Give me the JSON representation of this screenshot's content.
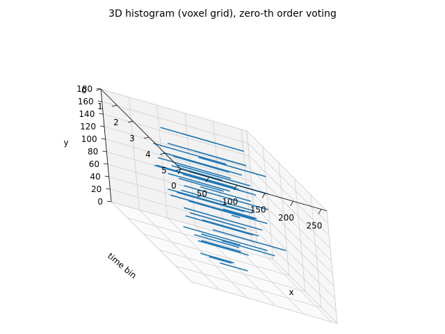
{
  "chart_data": {
    "type": "3d-voxel-histogram",
    "title": "3D histogram (voxel grid), zero-th order voting",
    "xlabel": "x",
    "ylabel": "y",
    "zlabel": "time bin",
    "x_ticks": [
      "0",
      "50",
      "100",
      "150",
      "200",
      "250"
    ],
    "y_ticks": [
      "0",
      "20",
      "40",
      "60",
      "80",
      "100",
      "120",
      "140",
      "160",
      "180"
    ],
    "time_ticks": [
      "0",
      "1",
      "2",
      "3",
      "4",
      "5"
    ],
    "xlim": [
      0,
      260
    ],
    "ylim": [
      0,
      180
    ],
    "time_lim": [
      0,
      5
    ],
    "grid": true,
    "series_color": "#1f77b4",
    "segments": [
      {
        "t": 0.3,
        "y": 40,
        "x0": 210,
        "x1": 225
      },
      {
        "t": 0.2,
        "y": 70,
        "x0": 160,
        "x1": 250
      },
      {
        "t": 0.5,
        "y": 50,
        "x0": 190,
        "x1": 250
      },
      {
        "t": 0.6,
        "y": 90,
        "x0": 120,
        "x1": 250
      },
      {
        "t": 0.9,
        "y": 30,
        "x0": 140,
        "x1": 240
      },
      {
        "t": 1.0,
        "y": 110,
        "x0": 100,
        "x1": 230
      },
      {
        "t": 1.2,
        "y": 60,
        "x0": 110,
        "x1": 250
      },
      {
        "t": 1.4,
        "y": 140,
        "x0": 130,
        "x1": 250
      },
      {
        "t": 1.5,
        "y": 80,
        "x0": 90,
        "x1": 220
      },
      {
        "t": 1.7,
        "y": 20,
        "x0": 150,
        "x1": 245
      },
      {
        "t": 1.8,
        "y": 120,
        "x0": 100,
        "x1": 240
      },
      {
        "t": 2.0,
        "y": 160,
        "x0": 60,
        "x1": 200
      },
      {
        "t": 2.1,
        "y": 100,
        "x0": 80,
        "x1": 230
      },
      {
        "t": 2.3,
        "y": 45,
        "x0": 120,
        "x1": 250
      },
      {
        "t": 2.4,
        "y": 150,
        "x0": 40,
        "x1": 180
      },
      {
        "t": 2.6,
        "y": 130,
        "x0": 20,
        "x1": 160
      },
      {
        "t": 2.7,
        "y": 75,
        "x0": 60,
        "x1": 200
      },
      {
        "t": 2.9,
        "y": 170,
        "x0": 10,
        "x1": 140
      },
      {
        "t": 3.0,
        "y": 95,
        "x0": 30,
        "x1": 180
      },
      {
        "t": 3.2,
        "y": 140,
        "x0": 0,
        "x1": 150
      },
      {
        "t": 3.3,
        "y": 55,
        "x0": 40,
        "x1": 190
      },
      {
        "t": 3.5,
        "y": 160,
        "x0": 0,
        "x1": 130
      },
      {
        "t": 3.6,
        "y": 115,
        "x0": 10,
        "x1": 160
      },
      {
        "t": 3.8,
        "y": 175,
        "x0": 20,
        "x1": 120
      },
      {
        "t": 3.9,
        "y": 85,
        "x0": 30,
        "x1": 150
      },
      {
        "t": 4.1,
        "y": 150,
        "x0": 0,
        "x1": 110
      },
      {
        "t": 4.2,
        "y": 125,
        "x0": 10,
        "x1": 130
      },
      {
        "t": 4.4,
        "y": 170,
        "x0": 0,
        "x1": 90
      },
      {
        "t": 4.6,
        "y": 105,
        "x0": 20,
        "x1": 120
      },
      {
        "t": 4.8,
        "y": 160,
        "x0": 0,
        "x1": 80
      },
      {
        "t": 1.1,
        "y": 10,
        "x0": 130,
        "x1": 200
      },
      {
        "t": 0.4,
        "y": 130,
        "x0": 150,
        "x1": 240
      },
      {
        "t": 2.2,
        "y": 20,
        "x0": 100,
        "x1": 170
      },
      {
        "t": 3.1,
        "y": 35,
        "x0": 70,
        "x1": 160
      },
      {
        "t": 4.0,
        "y": 60,
        "x0": 40,
        "x1": 120
      },
      {
        "t": 2.8,
        "y": 10,
        "x0": 80,
        "x1": 140
      },
      {
        "t": 1.6,
        "y": 175,
        "x0": 60,
        "x1": 160
      },
      {
        "t": 0.8,
        "y": 160,
        "x0": 120,
        "x1": 230
      },
      {
        "t": 3.7,
        "y": 20,
        "x0": 90,
        "x1": 140
      },
      {
        "t": 4.5,
        "y": 40,
        "x0": 50,
        "x1": 90
      }
    ]
  }
}
